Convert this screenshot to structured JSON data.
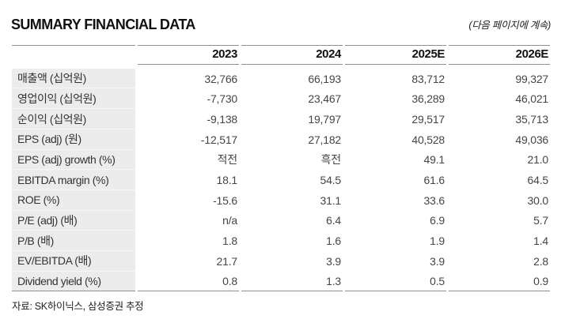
{
  "header": {
    "title": "SUMMARY FINANCIAL DATA",
    "note": "(다음 페이지에 계속)"
  },
  "table": {
    "columns": [
      "2023",
      "2024",
      "2025E",
      "2026E"
    ],
    "rows": [
      {
        "label": "매출액 (십억원)",
        "values": [
          "32,766",
          "66,193",
          "83,712",
          "99,327"
        ]
      },
      {
        "label": "영업이익 (십억원)",
        "values": [
          "-7,730",
          "23,467",
          "36,289",
          "46,021"
        ]
      },
      {
        "label": "순이익 (십억원)",
        "values": [
          "-9,138",
          "19,797",
          "29,517",
          "35,713"
        ]
      },
      {
        "label": "EPS (adj) (원)",
        "values": [
          "-12,517",
          "27,182",
          "40,528",
          "49,036"
        ]
      },
      {
        "label": "EPS (adj) growth (%)",
        "values": [
          "적전",
          "흑전",
          "49.1",
          "21.0"
        ]
      },
      {
        "label": "EBITDA margin (%)",
        "values": [
          "18.1",
          "54.5",
          "61.6",
          "64.5"
        ]
      },
      {
        "label": "ROE (%)",
        "values": [
          "-15.6",
          "31.1",
          "33.6",
          "30.0"
        ]
      },
      {
        "label": "P/E (adj) (배)",
        "values": [
          "n/a",
          "6.4",
          "6.9",
          "5.7"
        ]
      },
      {
        "label": "P/B (배)",
        "values": [
          "1.8",
          "1.6",
          "1.9",
          "1.4"
        ]
      },
      {
        "label": "EV/EBITDA (배)",
        "values": [
          "21.7",
          "3.9",
          "3.9",
          "2.8"
        ]
      },
      {
        "label": "Dividend yield (%)",
        "values": [
          "0.8",
          "1.3",
          "0.5",
          "0.9"
        ]
      }
    ]
  },
  "footer": {
    "source": "자료: SK하이닉스, 삼성증권 추정"
  },
  "colors": {
    "rule": "#8f8f8f",
    "label_background": "#ececec",
    "title_text": "#111111",
    "body_text": "#454545"
  }
}
